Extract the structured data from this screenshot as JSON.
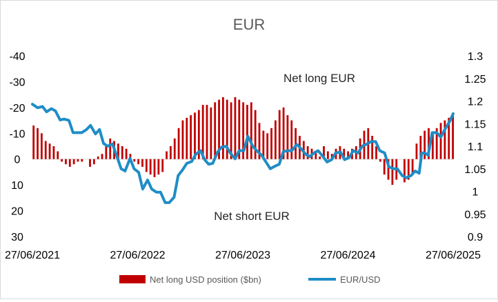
{
  "chart_data": {
    "type": "bar+line",
    "title": "EUR",
    "x": {
      "tick_labels": [
        "27/06/2021",
        "27/06/2022",
        "27/06/2023",
        "27/06/2024",
        "27/06/2025"
      ],
      "range": [
        "2021-06-27",
        "2025-06-27"
      ]
    },
    "y_left": {
      "tick_labels": [
        "-40",
        "-30",
        "-20",
        "-10",
        "0",
        "10",
        "20",
        "30"
      ],
      "range": [
        -40,
        30
      ],
      "inverted": true
    },
    "y_right": {
      "tick_labels": [
        "1.3",
        "1.25",
        "1.2",
        "1.15",
        "1.1",
        "1.05",
        "1",
        "0.95",
        "0.9"
      ],
      "range": [
        0.9,
        1.3
      ]
    },
    "annotations": {
      "top": "Net long EUR",
      "bottom": "Net short EUR"
    },
    "legend": {
      "placement": "bottom",
      "items": [
        {
          "label": "Net long USD position ($bn)",
          "color": "#c00000",
          "kind": "bar"
        },
        {
          "label": "EUR/USD",
          "color": "#1f8dc6",
          "kind": "line"
        }
      ]
    },
    "series": [
      {
        "name": "Net long USD position ($bn)",
        "axis": "left",
        "color": "#c00000",
        "points": [
          [
            "2021-07-01",
            -13
          ],
          [
            "2021-07-15",
            -12
          ],
          [
            "2021-07-29",
            -10
          ],
          [
            "2021-08-12",
            -7
          ],
          [
            "2021-08-26",
            -6
          ],
          [
            "2021-09-09",
            -5
          ],
          [
            "2021-09-23",
            -3
          ],
          [
            "2021-10-07",
            1
          ],
          [
            "2021-10-21",
            2
          ],
          [
            "2021-11-04",
            3
          ],
          [
            "2021-11-18",
            2
          ],
          [
            "2021-12-02",
            1
          ],
          [
            "2021-12-16",
            1
          ],
          [
            "2022-01-13",
            3
          ],
          [
            "2022-01-27",
            2
          ],
          [
            "2022-02-10",
            -1
          ],
          [
            "2022-02-24",
            -2
          ],
          [
            "2022-03-10",
            -5
          ],
          [
            "2022-03-24",
            -8
          ],
          [
            "2022-04-07",
            -7
          ],
          [
            "2022-04-21",
            -6
          ],
          [
            "2022-05-05",
            -5
          ],
          [
            "2022-05-19",
            -4
          ],
          [
            "2022-06-02",
            -2
          ],
          [
            "2022-06-16",
            1
          ],
          [
            "2022-06-30",
            2
          ],
          [
            "2022-07-14",
            3
          ],
          [
            "2022-07-28",
            5
          ],
          [
            "2022-08-11",
            6
          ],
          [
            "2022-08-25",
            7
          ],
          [
            "2022-09-08",
            6
          ],
          [
            "2022-09-22",
            5
          ],
          [
            "2022-10-06",
            -3
          ],
          [
            "2022-10-20",
            -5
          ],
          [
            "2022-11-03",
            -8
          ],
          [
            "2022-11-17",
            -12
          ],
          [
            "2022-12-01",
            -15
          ],
          [
            "2022-12-15",
            -16
          ],
          [
            "2022-12-29",
            -17
          ],
          [
            "2023-01-12",
            -18
          ],
          [
            "2023-01-26",
            -19
          ],
          [
            "2023-02-09",
            -21
          ],
          [
            "2023-02-23",
            -21
          ],
          [
            "2023-03-09",
            -20
          ],
          [
            "2023-03-23",
            -22
          ],
          [
            "2023-04-06",
            -23
          ],
          [
            "2023-04-20",
            -24
          ],
          [
            "2023-05-04",
            -23
          ],
          [
            "2023-05-18",
            -22
          ],
          [
            "2023-06-01",
            -24
          ],
          [
            "2023-06-15",
            -23
          ],
          [
            "2023-06-29",
            -22
          ],
          [
            "2023-07-13",
            -21
          ],
          [
            "2023-07-27",
            -22
          ],
          [
            "2023-08-10",
            -19
          ],
          [
            "2023-08-24",
            -14
          ],
          [
            "2023-09-07",
            -11
          ],
          [
            "2023-09-21",
            -10
          ],
          [
            "2023-10-05",
            -12
          ],
          [
            "2023-10-19",
            -15
          ],
          [
            "2023-11-02",
            -19
          ],
          [
            "2023-11-16",
            -20
          ],
          [
            "2023-11-30",
            -17
          ],
          [
            "2023-12-14",
            -15
          ],
          [
            "2023-12-28",
            -12
          ],
          [
            "2024-01-11",
            -9
          ],
          [
            "2024-01-25",
            -7
          ],
          [
            "2024-02-08",
            -5
          ],
          [
            "2024-02-22",
            -4
          ],
          [
            "2024-03-07",
            -3
          ],
          [
            "2024-03-21",
            -1
          ],
          [
            "2024-04-04",
            -5
          ],
          [
            "2024-04-18",
            -3
          ],
          [
            "2024-05-02",
            -2
          ],
          [
            "2024-05-16",
            -4
          ],
          [
            "2024-05-30",
            -5
          ],
          [
            "2024-06-13",
            -4
          ],
          [
            "2024-06-27",
            -3
          ],
          [
            "2024-07-11",
            -4
          ],
          [
            "2024-07-25",
            -5
          ],
          [
            "2024-08-08",
            -8
          ],
          [
            "2024-08-22",
            -11
          ],
          [
            "2024-09-05",
            -12
          ],
          [
            "2024-09-19",
            -9
          ],
          [
            "2024-10-03",
            -5
          ],
          [
            "2024-10-17",
            1
          ],
          [
            "2024-10-31",
            6
          ],
          [
            "2024-11-14",
            8
          ],
          [
            "2024-11-28",
            10
          ],
          [
            "2024-12-12",
            8
          ],
          [
            "2025-01-09",
            9
          ],
          [
            "2025-01-23",
            8
          ],
          [
            "2025-02-06",
            6
          ],
          [
            "2025-02-20",
            -6
          ],
          [
            "2025-03-06",
            -9
          ],
          [
            "2025-03-20",
            -11
          ],
          [
            "2025-04-03",
            -12
          ],
          [
            "2025-04-17",
            -10
          ],
          [
            "2025-05-01",
            -12
          ],
          [
            "2025-05-15",
            -14
          ],
          [
            "2025-05-29",
            -15
          ],
          [
            "2025-06-12",
            -16
          ],
          [
            "2025-06-26",
            -17
          ]
        ]
      },
      {
        "name": "EUR/USD",
        "axis": "right",
        "color": "#1f8dc6",
        "points": [
          [
            "2021-06-27",
            1.193
          ],
          [
            "2021-07-15",
            1.185
          ],
          [
            "2021-08-01",
            1.188
          ],
          [
            "2021-08-15",
            1.176
          ],
          [
            "2021-09-01",
            1.183
          ],
          [
            "2021-09-15",
            1.178
          ],
          [
            "2021-10-01",
            1.158
          ],
          [
            "2021-10-15",
            1.16
          ],
          [
            "2021-11-01",
            1.157
          ],
          [
            "2021-11-15",
            1.13
          ],
          [
            "2021-12-01",
            1.13
          ],
          [
            "2021-12-15",
            1.13
          ],
          [
            "2022-01-01",
            1.137
          ],
          [
            "2022-01-15",
            1.146
          ],
          [
            "2022-02-01",
            1.127
          ],
          [
            "2022-02-15",
            1.137
          ],
          [
            "2022-03-01",
            1.106
          ],
          [
            "2022-03-15",
            1.1
          ],
          [
            "2022-04-01",
            1.105
          ],
          [
            "2022-04-15",
            1.08
          ],
          [
            "2022-05-01",
            1.05
          ],
          [
            "2022-05-15",
            1.045
          ],
          [
            "2022-06-01",
            1.073
          ],
          [
            "2022-06-15",
            1.05
          ],
          [
            "2022-07-01",
            1.042
          ],
          [
            "2022-07-15",
            1.005
          ],
          [
            "2022-08-01",
            1.025
          ],
          [
            "2022-08-15",
            1.005
          ],
          [
            "2022-09-01",
            0.998
          ],
          [
            "2022-09-15",
            0.998
          ],
          [
            "2022-10-01",
            0.975
          ],
          [
            "2022-10-15",
            0.975
          ],
          [
            "2022-11-01",
            0.987
          ],
          [
            "2022-11-15",
            1.035
          ],
          [
            "2022-12-01",
            1.048
          ],
          [
            "2022-12-15",
            1.062
          ],
          [
            "2023-01-01",
            1.066
          ],
          [
            "2023-01-15",
            1.082
          ],
          [
            "2023-02-01",
            1.09
          ],
          [
            "2023-02-15",
            1.07
          ],
          [
            "2023-03-01",
            1.06
          ],
          [
            "2023-03-15",
            1.062
          ],
          [
            "2023-04-01",
            1.087
          ],
          [
            "2023-04-15",
            1.098
          ],
          [
            "2023-05-01",
            1.1
          ],
          [
            "2023-05-15",
            1.085
          ],
          [
            "2023-06-01",
            1.072
          ],
          [
            "2023-06-15",
            1.09
          ],
          [
            "2023-07-01",
            1.09
          ],
          [
            "2023-07-15",
            1.122
          ],
          [
            "2023-08-01",
            1.1
          ],
          [
            "2023-08-15",
            1.09
          ],
          [
            "2023-09-01",
            1.08
          ],
          [
            "2023-09-15",
            1.066
          ],
          [
            "2023-10-01",
            1.05
          ],
          [
            "2023-10-15",
            1.055
          ],
          [
            "2023-11-01",
            1.06
          ],
          [
            "2023-11-15",
            1.088
          ],
          [
            "2023-12-01",
            1.09
          ],
          [
            "2023-12-15",
            1.09
          ],
          [
            "2024-01-01",
            1.104
          ],
          [
            "2024-01-15",
            1.095
          ],
          [
            "2024-02-01",
            1.082
          ],
          [
            "2024-02-15",
            1.077
          ],
          [
            "2024-03-01",
            1.085
          ],
          [
            "2024-03-15",
            1.09
          ],
          [
            "2024-04-01",
            1.077
          ],
          [
            "2024-04-15",
            1.065
          ],
          [
            "2024-05-01",
            1.07
          ],
          [
            "2024-05-15",
            1.085
          ],
          [
            "2024-06-01",
            1.087
          ],
          [
            "2024-06-15",
            1.07
          ],
          [
            "2024-07-01",
            1.075
          ],
          [
            "2024-07-15",
            1.09
          ],
          [
            "2024-08-01",
            1.085
          ],
          [
            "2024-08-15",
            1.1
          ],
          [
            "2024-09-01",
            1.105
          ],
          [
            "2024-09-15",
            1.11
          ],
          [
            "2024-10-01",
            1.11
          ],
          [
            "2024-10-15",
            1.09
          ],
          [
            "2024-11-01",
            1.085
          ],
          [
            "2024-11-15",
            1.055
          ],
          [
            "2024-12-01",
            1.05
          ],
          [
            "2024-12-15",
            1.05
          ],
          [
            "2025-01-01",
            1.035
          ],
          [
            "2025-01-15",
            1.03
          ],
          [
            "2025-02-01",
            1.035
          ],
          [
            "2025-02-15",
            1.045
          ],
          [
            "2025-03-01",
            1.04
          ],
          [
            "2025-03-10",
            1.085
          ],
          [
            "2025-03-20",
            1.085
          ],
          [
            "2025-04-01",
            1.08
          ],
          [
            "2025-04-15",
            1.13
          ],
          [
            "2025-05-01",
            1.13
          ],
          [
            "2025-05-15",
            1.12
          ],
          [
            "2025-06-01",
            1.14
          ],
          [
            "2025-06-15",
            1.155
          ],
          [
            "2025-06-27",
            1.172
          ]
        ]
      }
    ]
  }
}
